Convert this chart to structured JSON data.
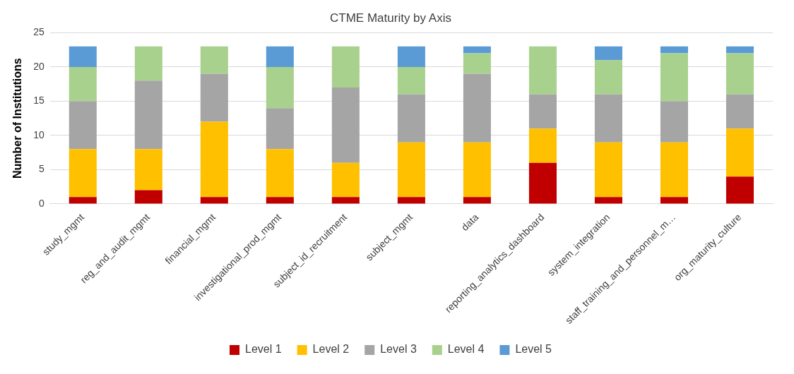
{
  "chart_data": {
    "type": "bar",
    "title": "CTME Maturity by Axis",
    "ylabel": "Number of Institutions",
    "stacked": true,
    "grid": "y",
    "legend": "bottom",
    "categories": [
      "study_mgmt",
      "reg_and_audit_mgmt",
      "financial_mgmt",
      "investigational_prod_mgmt",
      "subject_id_recruitment",
      "subject_mgmt",
      "data",
      "reporting_analytics_dashboard",
      "system_integration",
      "staff_training_and_personnel_m…",
      "org_maturity_culture"
    ],
    "ylim": [
      0,
      25
    ],
    "yticks": [
      0,
      5,
      10,
      15,
      20,
      25
    ],
    "series": [
      {
        "name": "Level 1",
        "color": "#c00000",
        "values": [
          1,
          2,
          1,
          1,
          1,
          1,
          1,
          6,
          1,
          1,
          4
        ]
      },
      {
        "name": "Level 2",
        "color": "#ffc000",
        "values": [
          7,
          6,
          11,
          7,
          5,
          8,
          8,
          5,
          8,
          8,
          7
        ]
      },
      {
        "name": "Level 3",
        "color": "#a5a5a5",
        "values": [
          7,
          10,
          7,
          6,
          11,
          7,
          10,
          5,
          7,
          6,
          5
        ]
      },
      {
        "name": "Level 4",
        "color": "#a9d18e",
        "values": [
          5,
          5,
          4,
          6,
          6,
          4,
          3,
          7,
          5,
          7,
          6
        ]
      },
      {
        "name": "Level 5",
        "color": "#5b9bd5",
        "values": [
          3,
          0,
          0,
          3,
          0,
          3,
          1,
          0,
          2,
          1,
          1
        ]
      }
    ]
  }
}
